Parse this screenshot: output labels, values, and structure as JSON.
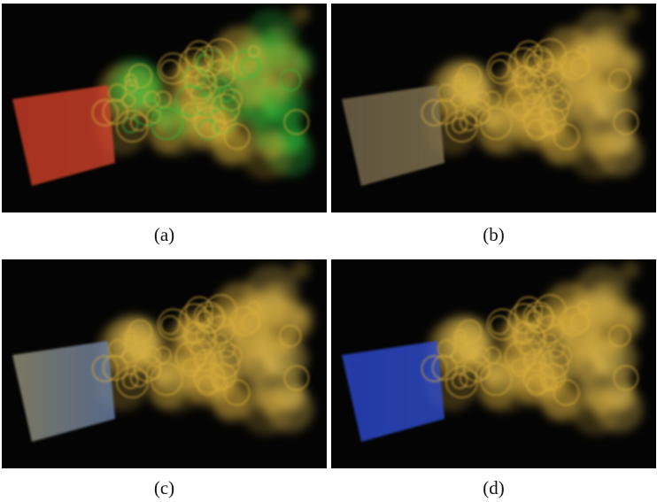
{
  "figure": {
    "panels": [
      {
        "id": "a",
        "caption": "(a)",
        "inlet_color": "#d9452b",
        "inlet_color_2": "#c23a24",
        "plume_color": "#d8b43a",
        "plume_accent": "#2fbf3a"
      },
      {
        "id": "b",
        "caption": "(b)",
        "inlet_color": "#8a7a55",
        "inlet_color_2": "#6e6248",
        "plume_color": "#d9ae3c",
        "plume_accent": "#e6c253"
      },
      {
        "id": "c",
        "caption": "(c)",
        "inlet_color": "#6f86b0",
        "inlet_color_2": "#8f8a70",
        "plume_color": "#d9ae3c",
        "plume_accent": "#e6c253"
      },
      {
        "id": "d",
        "caption": "(d)",
        "inlet_color": "#3050d8",
        "inlet_color_2": "#2a44c0",
        "plume_color": "#d9ae3c",
        "plume_accent": "#e6c253"
      }
    ]
  }
}
